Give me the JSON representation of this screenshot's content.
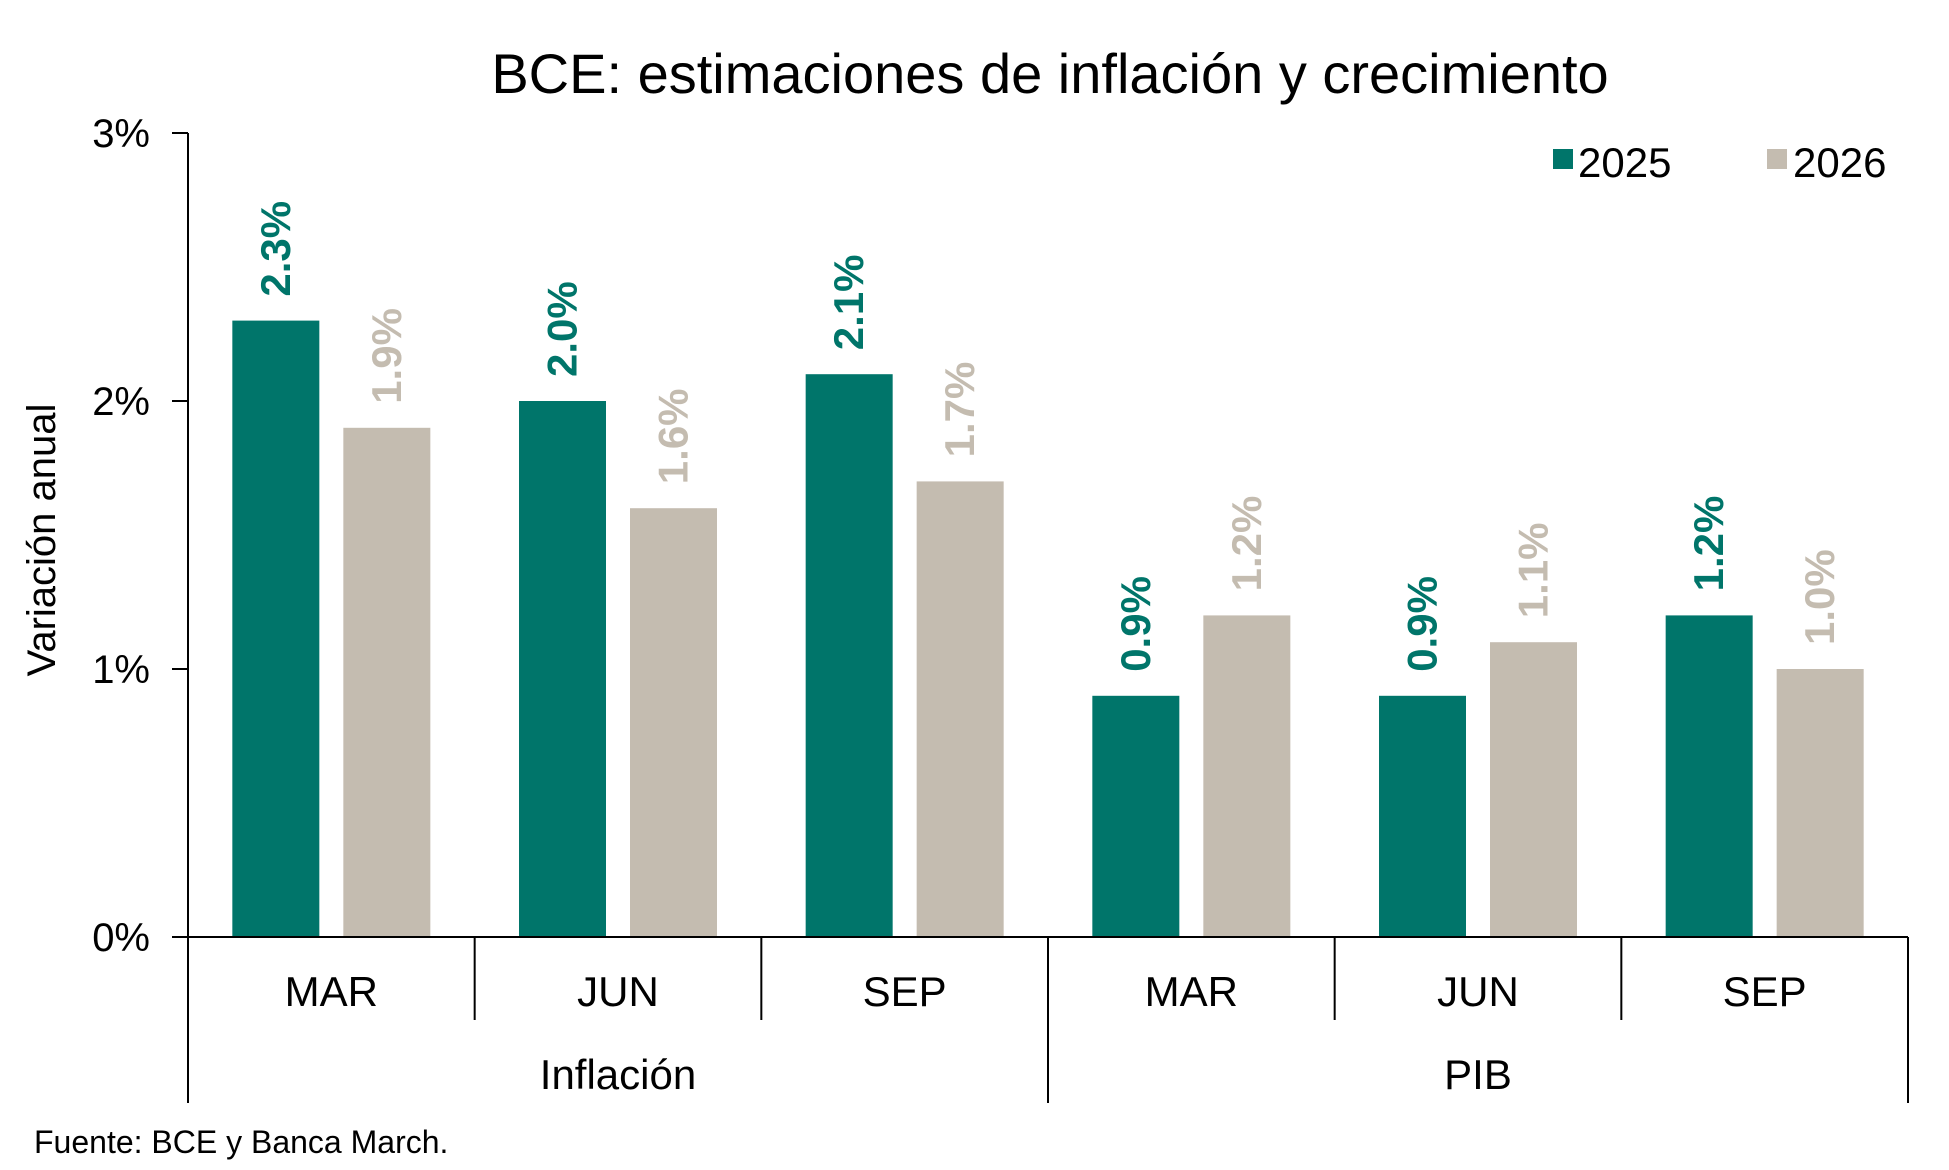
{
  "chart_data": {
    "type": "bar",
    "title": "BCE: estimaciones de inflación y crecimiento",
    "ylabel": "Variación anual",
    "xlabel": "",
    "ylim": [
      0,
      3
    ],
    "yticks": [
      "0%",
      "1%",
      "2%",
      "3%"
    ],
    "yticks_values": [
      0,
      1,
      2,
      3
    ],
    "groups": [
      {
        "name": "Inflación",
        "categories": [
          "MAR",
          "JUN",
          "SEP"
        ]
      },
      {
        "name": "PIB",
        "categories": [
          "MAR",
          "JUN",
          "SEP"
        ]
      }
    ],
    "series": [
      {
        "name": "2025",
        "color": "#00756A",
        "values": [
          2.3,
          2.0,
          2.1,
          0.9,
          0.9,
          1.2
        ],
        "labels": [
          "2.3%",
          "2.0%",
          "2.1%",
          "0.9%",
          "0.9%",
          "1.2%"
        ]
      },
      {
        "name": "2026",
        "color": "#C4BCB0",
        "values": [
          1.9,
          1.6,
          1.7,
          1.2,
          1.1,
          1.0
        ],
        "labels": [
          "1.9%",
          "1.6%",
          "1.7%",
          "1.2%",
          "1.1%",
          "1.0%"
        ]
      }
    ],
    "legend_position": "top-right",
    "grid": false,
    "source": "Fuente: BCE y Banca March."
  }
}
